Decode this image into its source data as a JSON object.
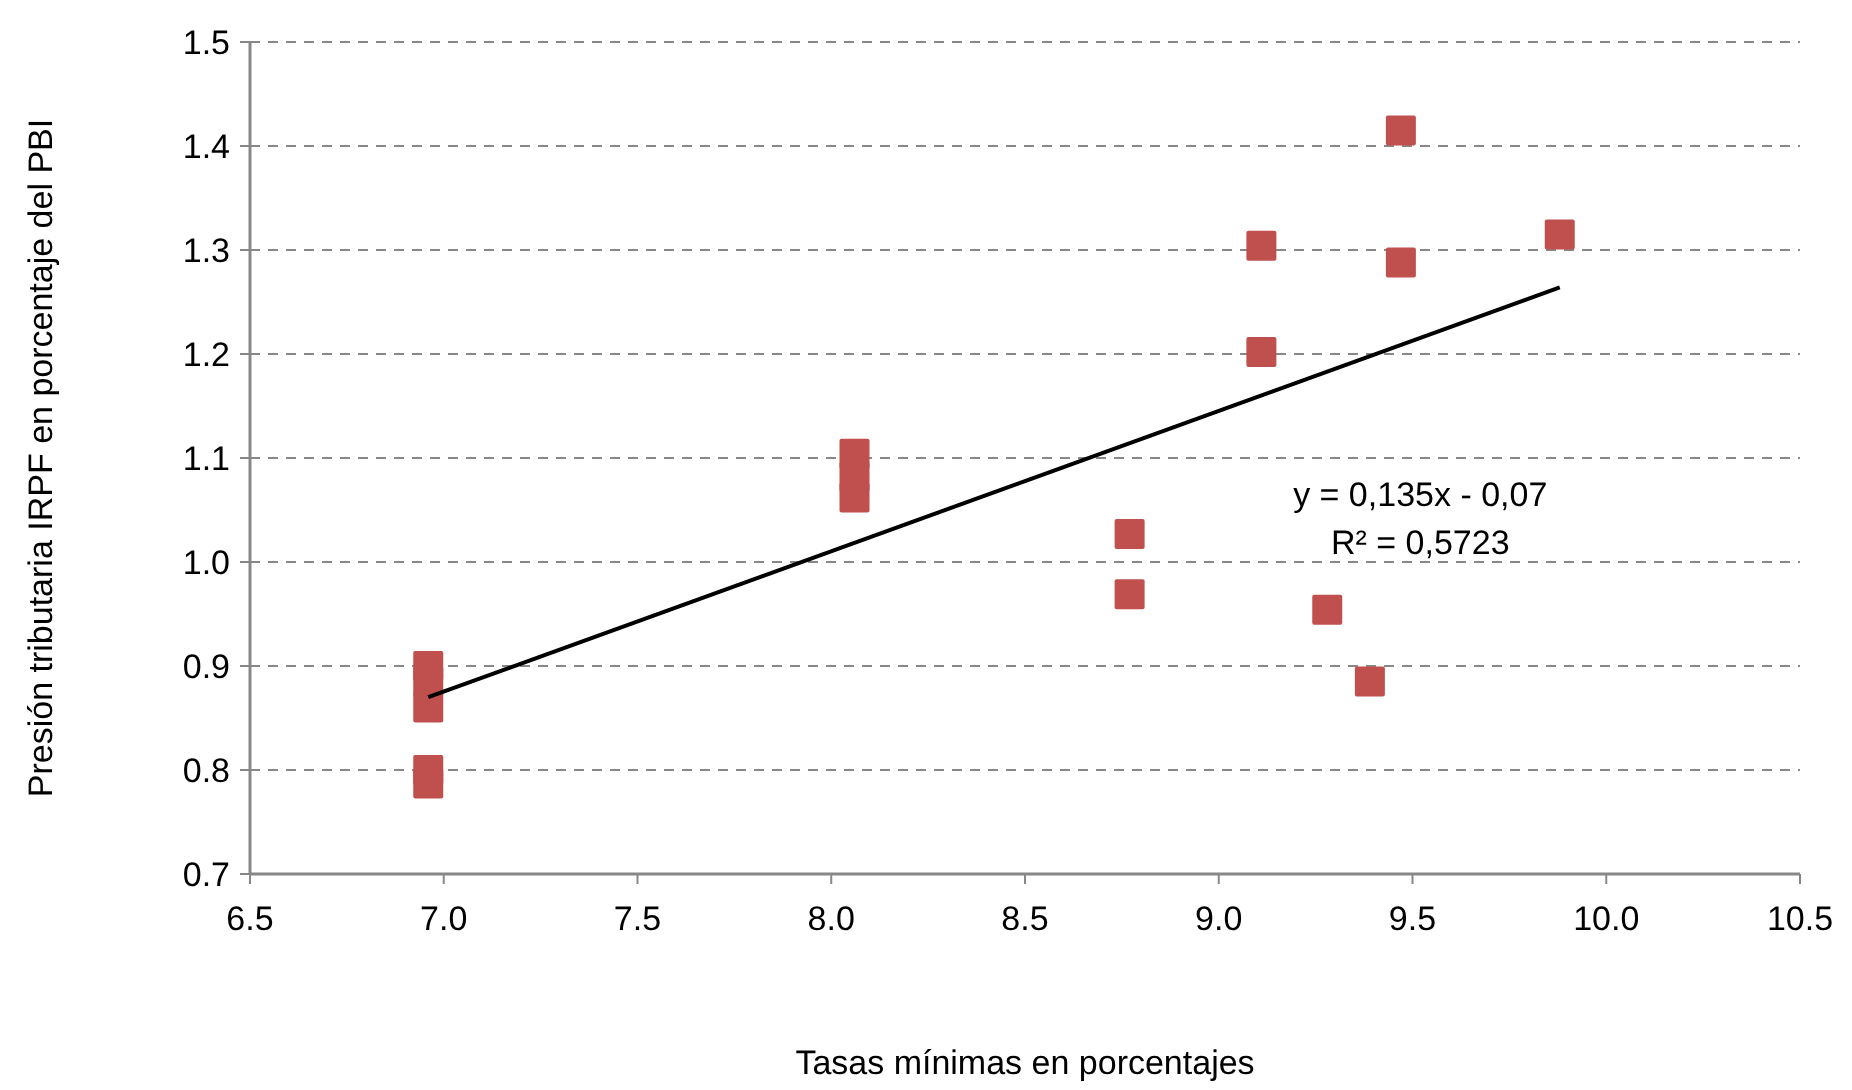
{
  "chart_data": {
    "type": "scatter",
    "xlabel": "Tasas mínimas en porcentajes",
    "ylabel": "Presión tributaria IRPF en porcentaje del PBI",
    "xlim": [
      6.5,
      10.5
    ],
    "xticks": [
      {
        "value": 6.5,
        "label": "6.5"
      },
      {
        "value": 7,
        "label": "7.0"
      },
      {
        "value": 7.5,
        "label": "7.5"
      },
      {
        "value": 8,
        "label": "8.0"
      },
      {
        "value": 8.5,
        "label": "8.5"
      },
      {
        "value": 9,
        "label": "9.0"
      },
      {
        "value": 9.5,
        "label": "9.5"
      },
      {
        "value": 10,
        "label": "10.0"
      },
      {
        "value": 10.5,
        "label": "10.5"
      }
    ],
    "ylim": [
      0.7,
      1.5
    ],
    "yticks": [
      {
        "value": 0.7,
        "label": "0.7"
      },
      {
        "value": 0.8,
        "label": "0.8"
      },
      {
        "value": 0.9,
        "label": "0.9"
      },
      {
        "value": 1.0,
        "label": "1.0"
      },
      {
        "value": 1.1,
        "label": "1.1"
      },
      {
        "value": 1.2,
        "label": "1.2"
      },
      {
        "value": 1.3,
        "label": "1.3"
      },
      {
        "value": 1.4,
        "label": "1.4"
      },
      {
        "value": 1.5,
        "label": "1.5"
      }
    ],
    "grid": "y",
    "marker": "square",
    "series": [
      {
        "color": "#c0504d",
        "x": [
          6.96,
          6.96,
          6.96,
          6.96,
          6.96,
          8.06,
          8.06,
          8.06,
          8.77,
          8.77,
          9.11,
          9.11,
          9.28,
          9.39,
          9.47,
          9.47,
          9.88
        ],
        "values": [
          0.9,
          0.885,
          0.86,
          0.8,
          0.787,
          1.104,
          1.082,
          1.062,
          1.027,
          0.969,
          1.304,
          1.202,
          0.954,
          0.885,
          1.415,
          1.288,
          1.315
        ]
      },
      {
        "type": "line",
        "color": "#000000",
        "x": [
          6.96,
          9.88
        ],
        "values": [
          0.87,
          1.264
        ],
        "marker": "none",
        "line_style": "solid"
      }
    ],
    "annotations": [
      "y = 0,135x - 0,07",
      "R² = 0,5723"
    ]
  }
}
